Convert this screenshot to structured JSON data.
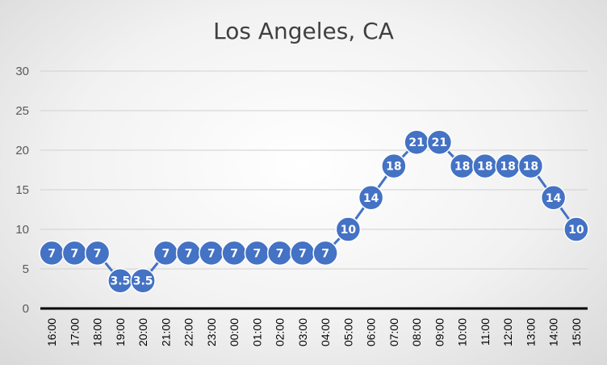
{
  "chart_data": {
    "type": "line",
    "title": "Los Angeles, CA",
    "xlabel": "",
    "ylabel": "",
    "ylim": [
      0,
      30
    ],
    "yticks": [
      0,
      5,
      10,
      15,
      20,
      25,
      30
    ],
    "grid": true,
    "categories": [
      "16:00",
      "17:00",
      "18:00",
      "19:00",
      "20:00",
      "21:00",
      "22:00",
      "23:00",
      "00:00",
      "01:00",
      "02:00",
      "03:00",
      "04:00",
      "05:00",
      "06:00",
      "07:00",
      "08:00",
      "09:00",
      "10:00",
      "11:00",
      "12:00",
      "13:00",
      "14:00",
      "15:00"
    ],
    "values": [
      7,
      7,
      7,
      3.5,
      3.5,
      7,
      7,
      7,
      7,
      7,
      7,
      7,
      7,
      10,
      14,
      18,
      21,
      21,
      18,
      18,
      18,
      18,
      14,
      10
    ],
    "series_color": "#4472C4"
  }
}
